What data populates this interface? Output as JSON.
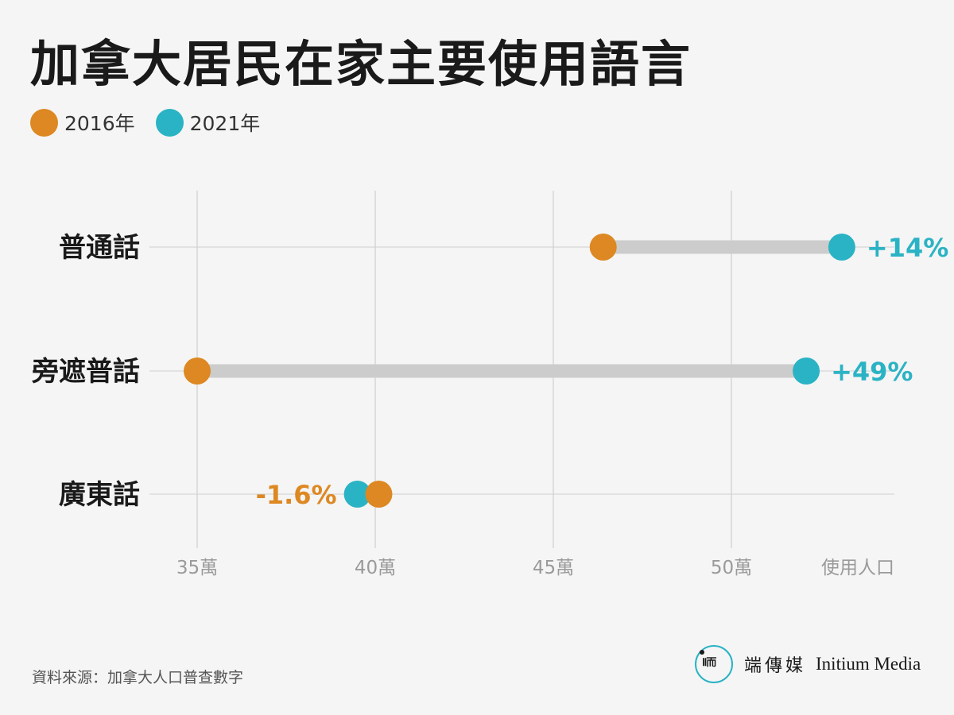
{
  "title": "加拿大居民在家主要使用語言",
  "legend": [
    {
      "label": "2016年",
      "color": "#dd8822"
    },
    {
      "label": "2021年",
      "color": "#2ab3c4"
    }
  ],
  "source": "資料來源：加拿大人口普查數字",
  "brand": {
    "logo_mark": "Ⅱ而",
    "name_cn": "端傳媒",
    "name_en": "Initium Media"
  },
  "chart_data": {
    "type": "dumbbell",
    "xlabel": "使用人口",
    "xlim": [
      33.65,
      55.5
    ],
    "ticks": [
      {
        "value": 35,
        "label": "35萬"
      },
      {
        "value": 40,
        "label": "40萬"
      },
      {
        "value": 45,
        "label": "45萬"
      },
      {
        "value": 50,
        "label": "50萬"
      }
    ],
    "categories": [
      "普通話",
      "旁遮普話",
      "廣東話"
    ],
    "series": [
      {
        "name": "2016年",
        "color": "#dd8822",
        "values": [
          46.4,
          35.0,
          40.1
        ]
      },
      {
        "name": "2021年",
        "color": "#2ab3c4",
        "values": [
          53.1,
          52.1,
          39.5
        ]
      }
    ],
    "changes": [
      {
        "label": "+14%",
        "color": "#2ab3c4"
      },
      {
        "label": "+49%",
        "color": "#2ab3c4"
      },
      {
        "label": "-1.6%",
        "color": "#dd8822"
      }
    ]
  }
}
